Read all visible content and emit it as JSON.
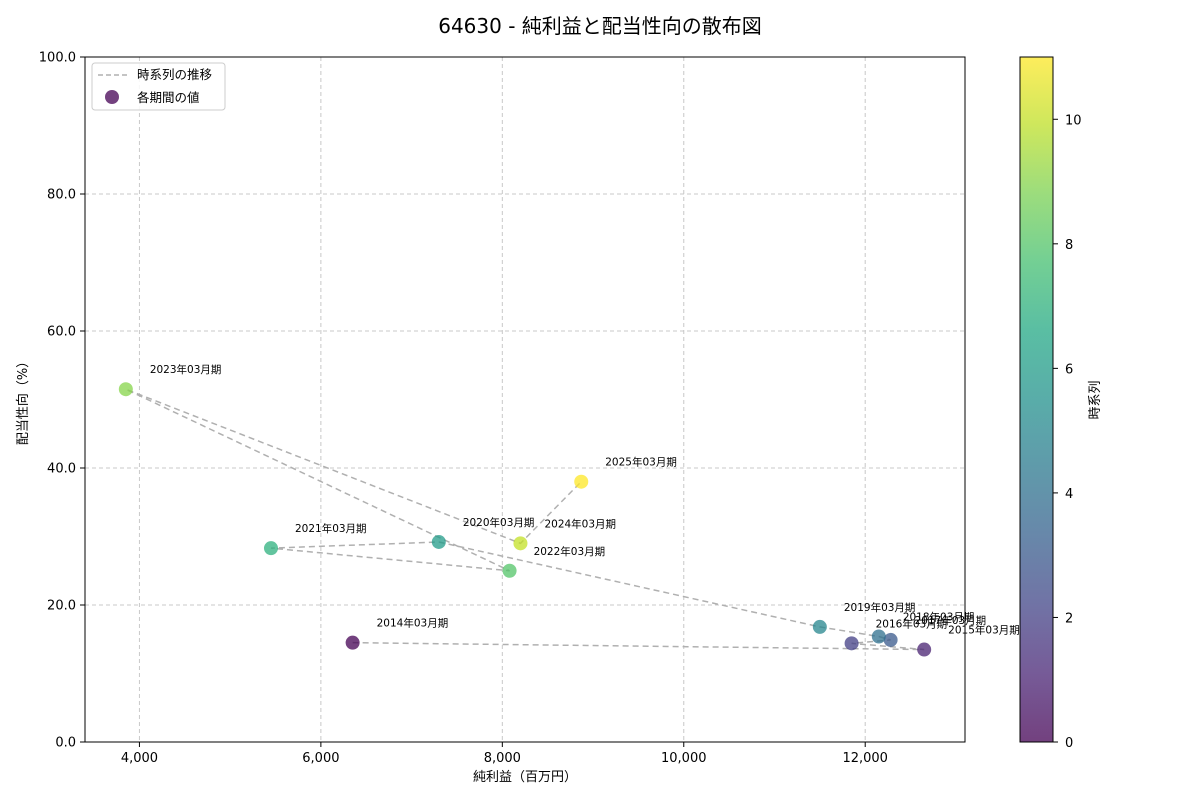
{
  "chart_data": {
    "type": "scatter",
    "title": "64630 - 純利益と配当性向の散布図",
    "xlabel": "純利益（百万円）",
    "ylabel": "配当性向（%）",
    "xlim": [
      3400,
      13100
    ],
    "ylim": [
      0,
      100
    ],
    "x_ticks": [
      4000,
      6000,
      8000,
      10000,
      12000
    ],
    "x_tick_labels": [
      "4,000",
      "6,000",
      "8,000",
      "10,000",
      "12,000"
    ],
    "y_ticks": [
      0,
      20,
      40,
      60,
      80,
      100
    ],
    "y_tick_labels": [
      "0.0",
      "20.0",
      "40.0",
      "60.0",
      "80.0",
      "100.0"
    ],
    "grid": true,
    "legend": {
      "position": "top-left",
      "entries": [
        {
          "label": "時系列の推移",
          "kind": "line"
        },
        {
          "label": "各期間の値",
          "kind": "marker"
        }
      ]
    },
    "colorbar": {
      "label": "時系列",
      "range": [
        0,
        11
      ],
      "ticks": [
        0,
        2,
        4,
        6,
        8,
        10
      ],
      "tick_labels": [
        "0",
        "2",
        "4",
        "6",
        "8",
        "10"
      ],
      "colormap": "viridis"
    },
    "points": [
      {
        "label": "2014年03月期",
        "x": 6350,
        "y": 14.5,
        "t": 0
      },
      {
        "label": "2015年03月期",
        "x": 12650,
        "y": 13.5,
        "t": 1
      },
      {
        "label": "2016年03月期",
        "x": 11850,
        "y": 14.4,
        "t": 2
      },
      {
        "label": "2017年03月期",
        "x": 12280,
        "y": 14.9,
        "t": 3
      },
      {
        "label": "2018年03月期",
        "x": 12150,
        "y": 15.4,
        "t": 4
      },
      {
        "label": "2019年03月期",
        "x": 11500,
        "y": 16.8,
        "t": 5
      },
      {
        "label": "2020年03月期",
        "x": 7300,
        "y": 29.2,
        "t": 6
      },
      {
        "label": "2021年03月期",
        "x": 5450,
        "y": 28.3,
        "t": 7
      },
      {
        "label": "2022年03月期",
        "x": 8080,
        "y": 25.0,
        "t": 8
      },
      {
        "label": "2023年03月期",
        "x": 3850,
        "y": 51.5,
        "t": 9
      },
      {
        "label": "2024年03月期",
        "x": 8200,
        "y": 29.0,
        "t": 10
      },
      {
        "label": "2025年03月期",
        "x": 8870,
        "y": 38.0,
        "t": 11
      }
    ]
  }
}
